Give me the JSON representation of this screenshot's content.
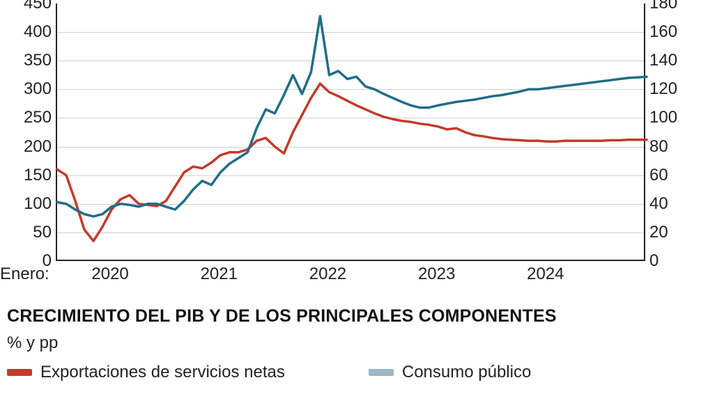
{
  "chart": {
    "type": "line",
    "background_color": "#ffffff",
    "grid_color": "#cfcfcf",
    "axis_color": "#222222",
    "tick_font_size": 24,
    "x_prefix": "Enero:",
    "x_labels": [
      "2020",
      "2021",
      "2022",
      "2023",
      "2024"
    ],
    "x_span_months": 66,
    "x_label_month_index": [
      6,
      18,
      30,
      42,
      54
    ],
    "left_axis": {
      "min": 0,
      "max": 450,
      "ticks": [
        0,
        50,
        100,
        150,
        200,
        250,
        300,
        350,
        400,
        450
      ]
    },
    "right_axis": {
      "min": 0,
      "max": 180,
      "ticks": [
        0,
        20,
        40,
        60,
        80,
        100,
        120,
        140,
        160,
        180
      ]
    },
    "series": [
      {
        "name": "red-line",
        "axis": "left",
        "color": "#c23a2a",
        "line_width": 3.5,
        "points": [
          [
            0,
            160
          ],
          [
            1,
            150
          ],
          [
            2,
            105
          ],
          [
            3,
            55
          ],
          [
            4,
            35
          ],
          [
            5,
            60
          ],
          [
            6,
            90
          ],
          [
            7,
            108
          ],
          [
            8,
            115
          ],
          [
            9,
            100
          ],
          [
            10,
            98
          ],
          [
            11,
            96
          ],
          [
            12,
            105
          ],
          [
            13,
            130
          ],
          [
            14,
            155
          ],
          [
            15,
            165
          ],
          [
            16,
            162
          ],
          [
            17,
            172
          ],
          [
            18,
            185
          ],
          [
            19,
            190
          ],
          [
            20,
            190
          ],
          [
            21,
            195
          ],
          [
            22,
            210
          ],
          [
            23,
            215
          ],
          [
            24,
            200
          ],
          [
            25,
            188
          ],
          [
            26,
            225
          ],
          [
            27,
            255
          ],
          [
            28,
            285
          ],
          [
            29,
            310
          ],
          [
            30,
            295
          ],
          [
            31,
            288
          ],
          [
            32,
            280
          ],
          [
            33,
            272
          ],
          [
            34,
            265
          ],
          [
            35,
            258
          ],
          [
            36,
            252
          ],
          [
            37,
            248
          ],
          [
            38,
            245
          ],
          [
            39,
            243
          ],
          [
            40,
            240
          ],
          [
            41,
            238
          ],
          [
            42,
            235
          ],
          [
            43,
            230
          ],
          [
            44,
            232
          ],
          [
            45,
            225
          ],
          [
            46,
            220
          ],
          [
            47,
            218
          ],
          [
            48,
            215
          ],
          [
            49,
            213
          ],
          [
            50,
            212
          ],
          [
            51,
            211
          ],
          [
            52,
            210
          ],
          [
            53,
            210
          ],
          [
            54,
            209
          ],
          [
            55,
            209
          ],
          [
            56,
            210
          ],
          [
            57,
            210
          ],
          [
            58,
            210
          ],
          [
            59,
            210
          ],
          [
            60,
            210
          ],
          [
            61,
            211
          ],
          [
            62,
            211
          ],
          [
            63,
            212
          ],
          [
            64,
            212
          ],
          [
            65,
            212
          ]
        ]
      },
      {
        "name": "blue-line",
        "axis": "left",
        "color": "#1e6e87",
        "line_width": 3.5,
        "points": [
          [
            0,
            103
          ],
          [
            1,
            100
          ],
          [
            2,
            90
          ],
          [
            3,
            82
          ],
          [
            4,
            78
          ],
          [
            5,
            82
          ],
          [
            6,
            95
          ],
          [
            7,
            100
          ],
          [
            8,
            98
          ],
          [
            9,
            95
          ],
          [
            10,
            100
          ],
          [
            11,
            100
          ],
          [
            12,
            95
          ],
          [
            13,
            90
          ],
          [
            14,
            105
          ],
          [
            15,
            125
          ],
          [
            16,
            140
          ],
          [
            17,
            133
          ],
          [
            18,
            155
          ],
          [
            19,
            170
          ],
          [
            20,
            180
          ],
          [
            21,
            190
          ],
          [
            22,
            232
          ],
          [
            23,
            265
          ],
          [
            24,
            258
          ],
          [
            25,
            290
          ],
          [
            26,
            325
          ],
          [
            27,
            292
          ],
          [
            28,
            330
          ],
          [
            29,
            428
          ],
          [
            30,
            325
          ],
          [
            31,
            332
          ],
          [
            32,
            318
          ],
          [
            33,
            322
          ],
          [
            34,
            305
          ],
          [
            35,
            300
          ],
          [
            36,
            292
          ],
          [
            37,
            285
          ],
          [
            38,
            278
          ],
          [
            39,
            272
          ],
          [
            40,
            268
          ],
          [
            41,
            268
          ],
          [
            42,
            272
          ],
          [
            43,
            275
          ],
          [
            44,
            278
          ],
          [
            45,
            280
          ],
          [
            46,
            282
          ],
          [
            47,
            285
          ],
          [
            48,
            288
          ],
          [
            49,
            290
          ],
          [
            50,
            293
          ],
          [
            51,
            296
          ],
          [
            52,
            300
          ],
          [
            53,
            300
          ],
          [
            54,
            302
          ],
          [
            55,
            304
          ],
          [
            56,
            306
          ],
          [
            57,
            308
          ],
          [
            58,
            310
          ],
          [
            59,
            312
          ],
          [
            60,
            314
          ],
          [
            61,
            316
          ],
          [
            62,
            318
          ],
          [
            63,
            320
          ],
          [
            64,
            321
          ],
          [
            65,
            322
          ]
        ]
      }
    ]
  },
  "section": {
    "title": "CRECIMIENTO DEL PIB Y DE LOS PRINCIPALES COMPONENTES",
    "subtitle": "% y pp",
    "title_fontsize": 25,
    "subtitle_fontsize": 24
  },
  "legend": {
    "items": [
      {
        "label": "Exportaciones de servicios netas",
        "color": "#c23a2a"
      },
      {
        "label": "Consumo público",
        "color": "#9bb8c4"
      }
    ],
    "swatch_width": 36,
    "swatch_height": 10,
    "font_size": 24
  }
}
